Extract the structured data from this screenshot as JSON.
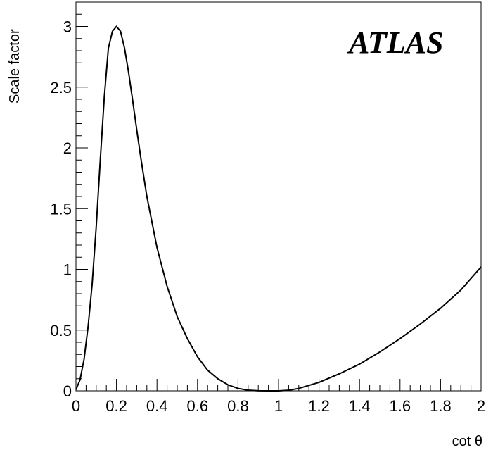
{
  "chart_data": {
    "type": "line",
    "title": "",
    "xlabel": "cot θ",
    "ylabel": "Scale factor",
    "annotation": "ATLAS",
    "xlim": [
      0,
      2
    ],
    "ylim": [
      0,
      3.2
    ],
    "x_ticks": [
      "0",
      "0.2",
      "0.4",
      "0.6",
      "0.8",
      "1",
      "1.2",
      "1.4",
      "1.6",
      "1.8",
      "2"
    ],
    "y_ticks": [
      "0",
      "0.5",
      "1",
      "1.5",
      "2",
      "2.5",
      "3"
    ],
    "grid": false,
    "series": [
      {
        "color": "#000000",
        "x": [
          0,
          0.02,
          0.04,
          0.06,
          0.08,
          0.1,
          0.12,
          0.14,
          0.16,
          0.18,
          0.2,
          0.22,
          0.24,
          0.26,
          0.28,
          0.3,
          0.32,
          0.35,
          0.4,
          0.45,
          0.5,
          0.55,
          0.6,
          0.65,
          0.7,
          0.75,
          0.8,
          0.85,
          0.9,
          0.95,
          1.0,
          1.05,
          1.1,
          1.2,
          1.3,
          1.4,
          1.5,
          1.6,
          1.7,
          1.8,
          1.9,
          2.0
        ],
        "y": [
          0.01,
          0.09,
          0.26,
          0.53,
          0.88,
          1.35,
          1.9,
          2.42,
          2.82,
          2.96,
          3.0,
          2.96,
          2.82,
          2.62,
          2.39,
          2.15,
          1.92,
          1.6,
          1.18,
          0.86,
          0.61,
          0.43,
          0.28,
          0.17,
          0.1,
          0.05,
          0.02,
          0.006,
          0.001,
          0.0,
          0.0,
          0.005,
          0.02,
          0.07,
          0.14,
          0.22,
          0.32,
          0.43,
          0.55,
          0.68,
          0.83,
          1.02
        ]
      }
    ]
  }
}
